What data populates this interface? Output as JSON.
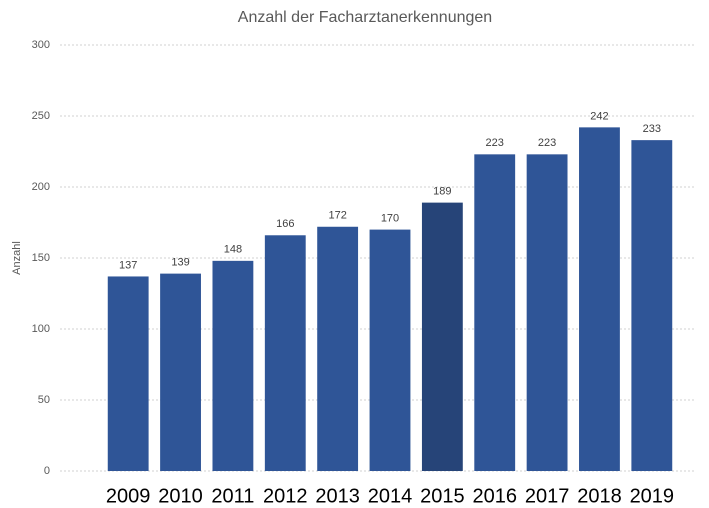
{
  "chart_data": {
    "type": "bar",
    "title": "Anzahl der Facharztanerkennungen",
    "y_label": "Anzahl",
    "categories": [
      "2009",
      "2010",
      "2011",
      "2012",
      "2013",
      "2014",
      "2015",
      "2016",
      "2017",
      "2018",
      "2019"
    ],
    "values": [
      137,
      139,
      148,
      166,
      172,
      170,
      189,
      223,
      223,
      242,
      233
    ],
    "colors": [
      "#2f5597",
      "#2f5597",
      "#2f5597",
      "#2f5597",
      "#2f5597",
      "#2f5597",
      "#264478",
      "#2f5597",
      "#2f5597",
      "#2f5597",
      "#2f5597"
    ],
    "ylim": [
      0,
      300
    ],
    "yticks": [
      0,
      50,
      100,
      150,
      200,
      250,
      300
    ],
    "grid": true,
    "data_labels": true
  }
}
